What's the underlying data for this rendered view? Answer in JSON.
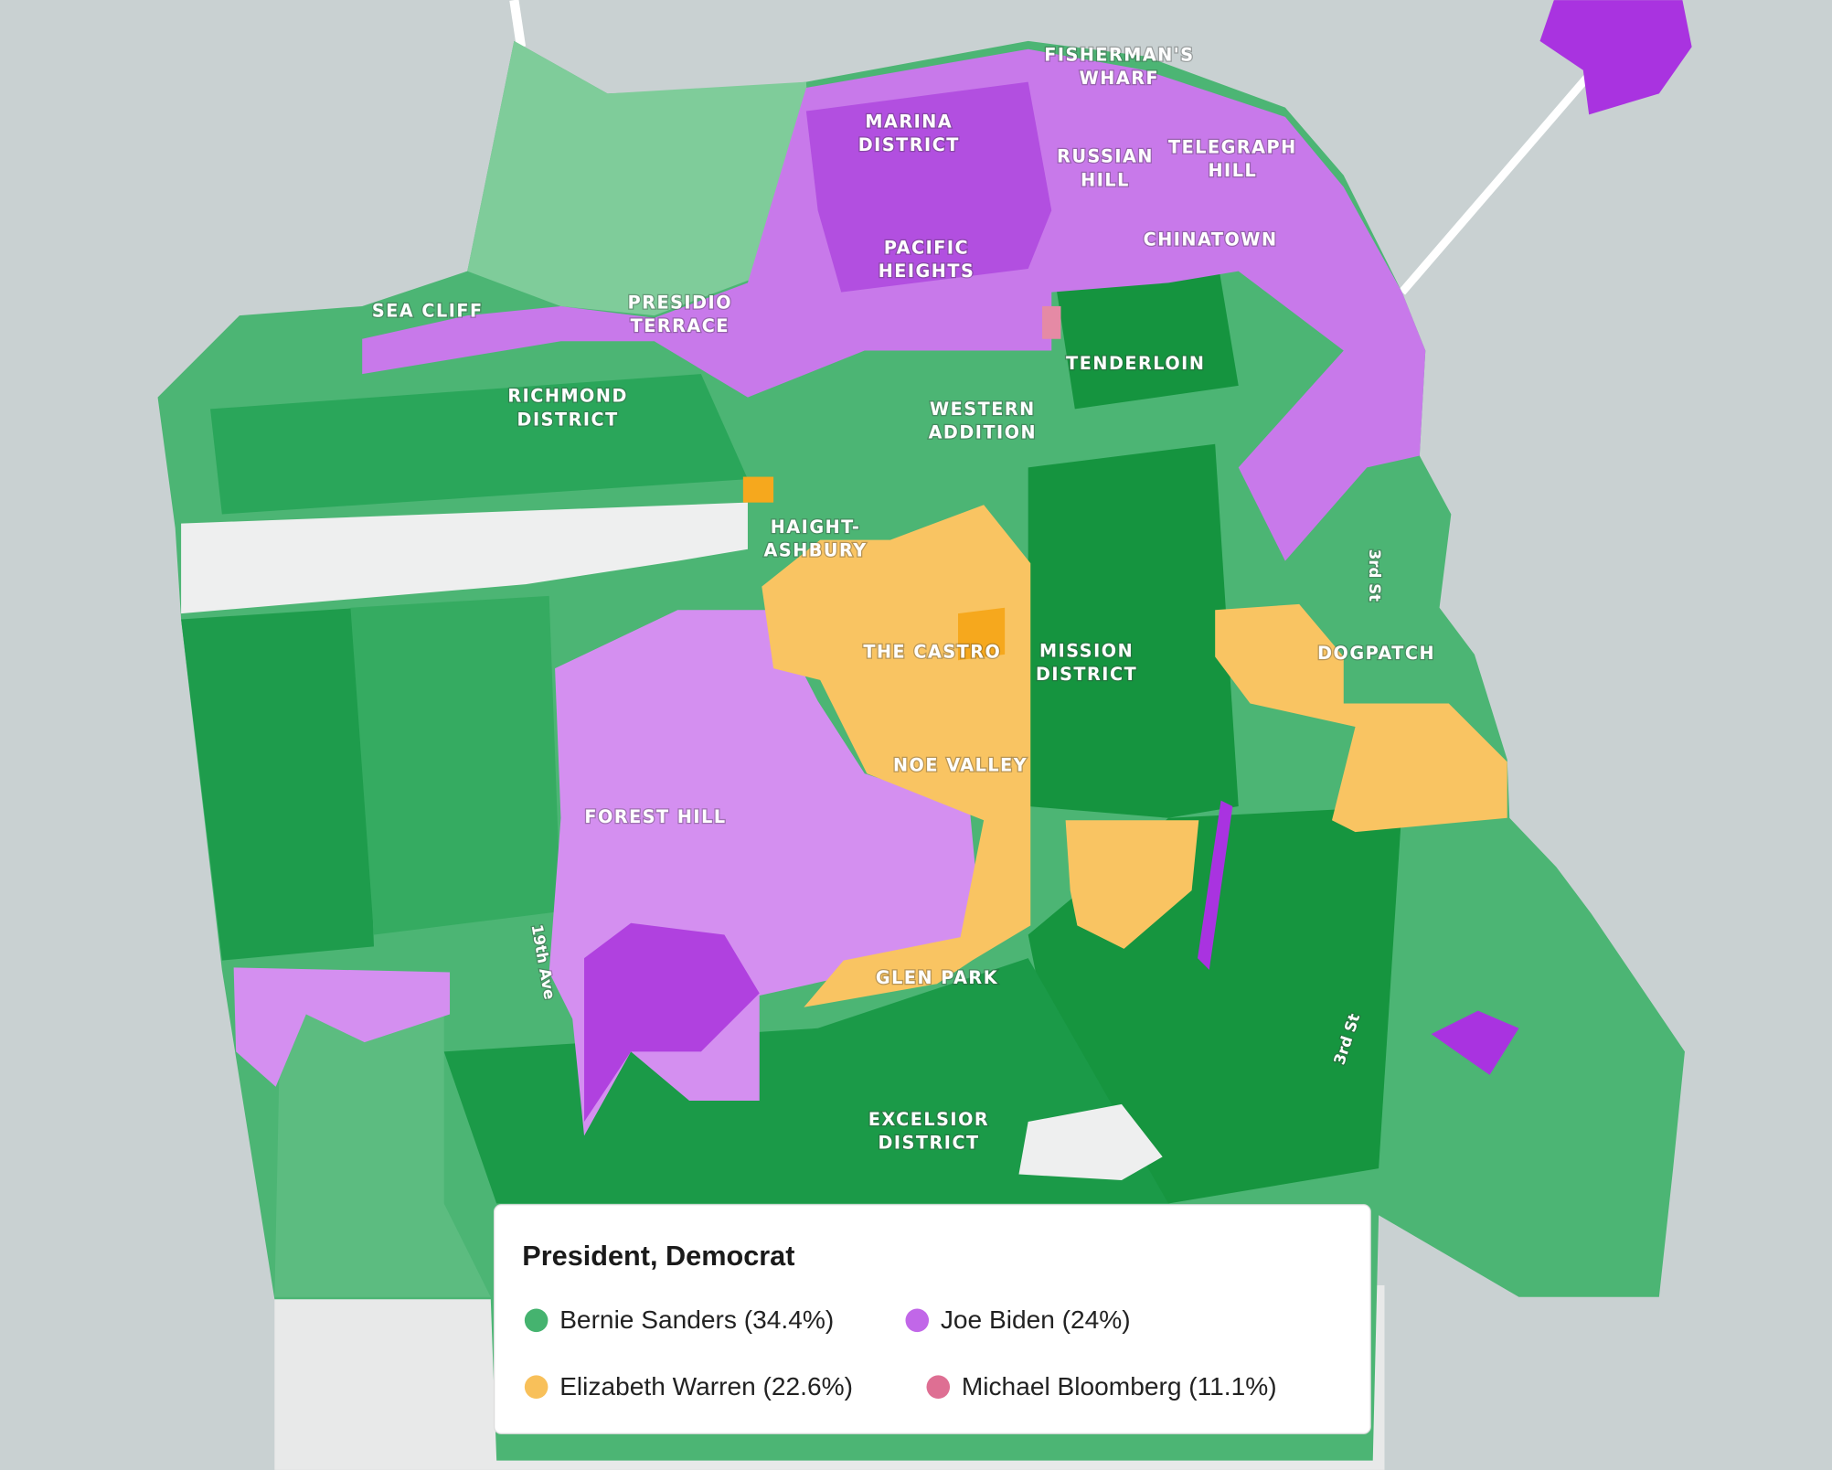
{
  "neighborhoods": [
    {
      "lines": [
        "FISHERMAN'S",
        "WHARF"
      ]
    },
    {
      "lines": [
        "MARINA",
        "DISTRICT"
      ]
    },
    {
      "lines": [
        "RUSSIAN",
        "HILL"
      ]
    },
    {
      "lines": [
        "TELEGRAPH",
        "HILL"
      ]
    },
    {
      "lines": [
        "CHINATOWN"
      ]
    },
    {
      "lines": [
        "PACIFIC",
        "HEIGHTS"
      ]
    },
    {
      "lines": [
        "SEA CLIFF"
      ]
    },
    {
      "lines": [
        "PRESIDIO",
        "TERRACE"
      ]
    },
    {
      "lines": [
        "TENDERLOIN"
      ]
    },
    {
      "lines": [
        "RICHMOND",
        "DISTRICT"
      ]
    },
    {
      "lines": [
        "WESTERN",
        "ADDITION"
      ]
    },
    {
      "lines": [
        "HAIGHT-",
        "ASHBURY"
      ]
    },
    {
      "lines": [
        "THE CASTRO"
      ]
    },
    {
      "lines": [
        "MISSION",
        "DISTRICT"
      ]
    },
    {
      "lines": [
        "DOGPATCH"
      ]
    },
    {
      "lines": [
        "NOE VALLEY"
      ]
    },
    {
      "lines": [
        "FOREST HILL"
      ]
    },
    {
      "lines": [
        "GLEN PARK"
      ]
    },
    {
      "lines": [
        "EXCELSIOR",
        "DISTRICT"
      ]
    }
  ],
  "streets": [
    "3rd St",
    "19th Ave",
    "3rd St"
  ],
  "legend": {
    "title": "President, Democrat",
    "items": [
      {
        "label": "Bernie Sanders (34.4%)",
        "color": "#45b36f"
      },
      {
        "label": "Joe Biden (24%)",
        "color": "#c167e8"
      },
      {
        "label": "Elizabeth Warren (22.6%)",
        "color": "#f8c05a"
      },
      {
        "label": "Michael Bloomberg (11.1%)",
        "color": "#de6f93"
      }
    ]
  }
}
